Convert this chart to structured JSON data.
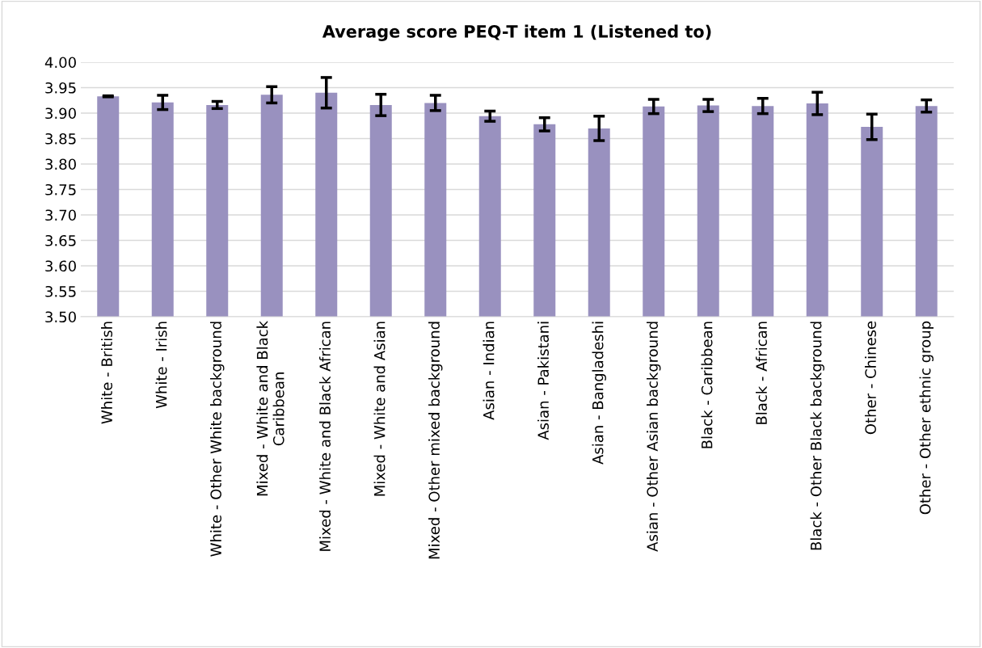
{
  "chart_data": {
    "type": "bar",
    "title": "Average score PEQ-T item 1 (Listened to)",
    "categories": [
      "White - British",
      "White - Irish",
      "White - Other White background",
      "Mixed - White and Black\nCaribbean",
      "Mixed - White and Black African",
      "Mixed - White and Asian",
      "Mixed - Other mixed background",
      "Asian - Indian",
      "Asian - Pakistani",
      "Asian - Bangladeshi",
      "Asian - Other Asian background",
      "Black - Caribbean",
      "Black - African",
      "Black - Other Black background",
      "Other - Chinese",
      "Other - Other ethnic group"
    ],
    "values": [
      3.933,
      3.921,
      3.916,
      3.936,
      3.94,
      3.916,
      3.92,
      3.894,
      3.878,
      3.87,
      3.913,
      3.915,
      3.914,
      3.919,
      3.873,
      3.914
    ],
    "errors": [
      0.001,
      0.014,
      0.007,
      0.016,
      0.03,
      0.021,
      0.015,
      0.01,
      0.013,
      0.024,
      0.014,
      0.012,
      0.015,
      0.022,
      0.025,
      0.012
    ],
    "color": "#9991bf",
    "ylim": [
      3.5,
      4.0
    ],
    "yticks": [
      {
        "value": 3.5,
        "label": "3.50"
      },
      {
        "value": 3.55,
        "label": "3.55"
      },
      {
        "value": 3.6,
        "label": "3.60"
      },
      {
        "value": 3.65,
        "label": "3.65"
      },
      {
        "value": 3.7,
        "label": "3.70"
      },
      {
        "value": 3.75,
        "label": "3.75"
      },
      {
        "value": 3.8,
        "label": "3.80"
      },
      {
        "value": 3.85,
        "label": "3.85"
      },
      {
        "value": 3.9,
        "label": "3.90"
      },
      {
        "value": 3.95,
        "label": "3.95"
      },
      {
        "value": 4.0,
        "label": "4.00"
      }
    ],
    "grid": "y"
  }
}
